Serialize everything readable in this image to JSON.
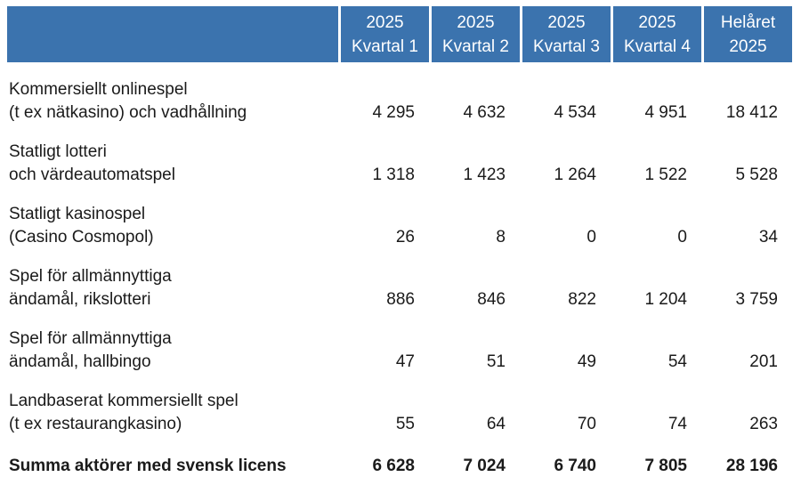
{
  "table": {
    "colors": {
      "header_bg": "#3B73AE",
      "header_text": "#FFFFFF",
      "body_text": "#1A1A1A"
    },
    "columns": [
      {
        "line1": "2025",
        "line2": "Kvartal 1"
      },
      {
        "line1": "2025",
        "line2": "Kvartal 2"
      },
      {
        "line1": "2025",
        "line2": "Kvartal 3"
      },
      {
        "line1": "2025",
        "line2": "Kvartal 4"
      },
      {
        "line1": "Helåret",
        "line2": "2025"
      }
    ],
    "rows": [
      {
        "label_line1": "Kommersiellt onlinespel",
        "label_line2": "(t ex nätkasino) och vadhållning",
        "values": [
          "4 295",
          "4 632",
          "4 534",
          "4 951",
          "18 412"
        ]
      },
      {
        "label_line1": "Statligt lotteri",
        "label_line2": "och värdeautomatspel",
        "values": [
          "1 318",
          "1 423",
          "1 264",
          "1 522",
          "5 528"
        ]
      },
      {
        "label_line1": "Statligt kasinospel",
        "label_line2": "(Casino Cosmopol)",
        "values": [
          "26",
          "8",
          "0",
          "0",
          "34"
        ]
      },
      {
        "label_line1": "Spel för allmännyttiga",
        "label_line2": "ändamål, rikslotteri",
        "values": [
          "886",
          "846",
          "822",
          "1 204",
          "3 759"
        ]
      },
      {
        "label_line1": "Spel för allmännyttiga",
        "label_line2": "ändamål, hallbingo",
        "values": [
          "47",
          "51",
          "49",
          "54",
          "201"
        ]
      },
      {
        "label_line1": "Landbaserat kommersiellt spel",
        "label_line2": "(t ex restaurangkasino)",
        "values": [
          "55",
          "64",
          "70",
          "74",
          "263"
        ]
      }
    ],
    "total_row": {
      "label": "Summa aktörer med svensk licens",
      "values": [
        "6 628",
        "7 024",
        "6 740",
        "7 805",
        "28 196"
      ]
    }
  }
}
